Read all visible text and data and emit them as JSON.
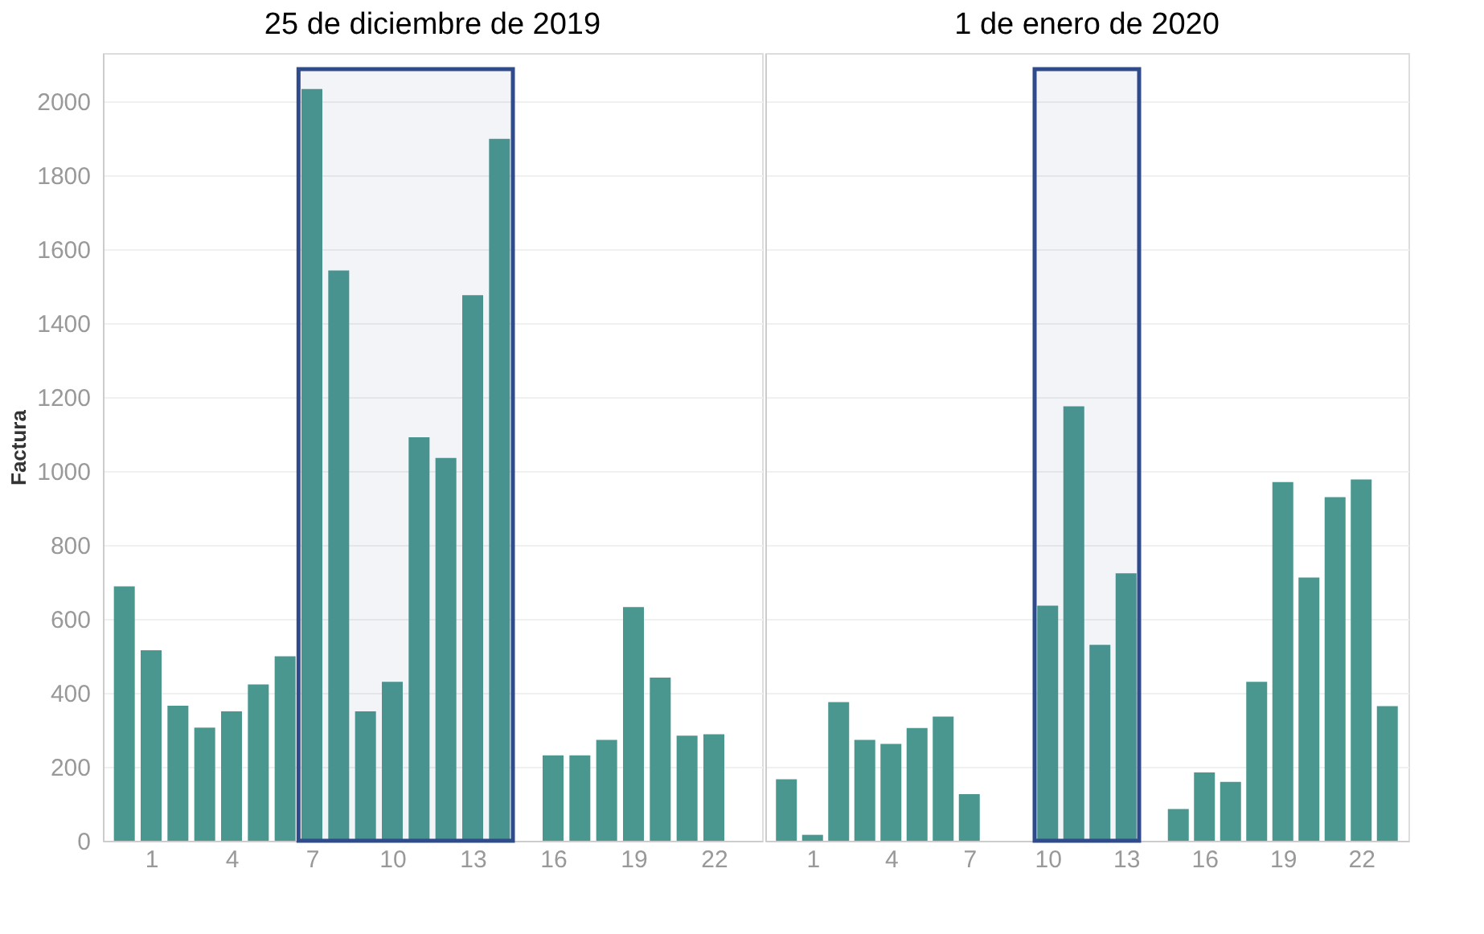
{
  "chart_data": [
    {
      "type": "bar",
      "title": "25 de diciembre de 2019",
      "ylabel": "Factura",
      "x": [
        0,
        1,
        2,
        3,
        4,
        5,
        6,
        7,
        8,
        9,
        10,
        11,
        12,
        13,
        14,
        16,
        17,
        18,
        19,
        20,
        21,
        22
      ],
      "values": [
        688,
        515,
        365,
        306,
        350,
        423,
        499,
        2033,
        1542,
        350,
        430,
        1091,
        1035,
        1475,
        1898,
        231,
        231,
        273,
        632,
        441,
        284,
        288
      ],
      "color": "#4a9790",
      "xlim": [
        -0.5,
        23.5
      ],
      "xticks": [
        1,
        4,
        7,
        10,
        13,
        16,
        19,
        22
      ],
      "ylim": [
        0,
        2130
      ],
      "yticks": [
        0,
        200,
        400,
        600,
        800,
        1000,
        1200,
        1400,
        1600,
        1800,
        2000
      ],
      "grid": "y",
      "bands": [
        {
          "axis": "x",
          "from": 6.5,
          "to": 14.5,
          "label": null,
          "color": "#2f4b8c"
        }
      ]
    },
    {
      "type": "bar",
      "title": "1 de enero de 2020",
      "x": [
        0,
        1,
        2,
        3,
        4,
        5,
        6,
        7,
        10,
        11,
        12,
        13,
        15,
        16,
        17,
        18,
        19,
        20,
        21,
        22,
        23
      ],
      "values": [
        166,
        16,
        375,
        273,
        262,
        305,
        336,
        126,
        636,
        1175,
        530,
        723,
        86,
        185,
        159,
        430,
        970,
        712,
        929,
        977,
        364
      ],
      "color": "#4a9790",
      "xlim": [
        -0.5,
        23.5
      ],
      "xticks": [
        1,
        4,
        7,
        10,
        13,
        16,
        19,
        22
      ],
      "ylim": [
        0,
        2130
      ],
      "yticks": [
        0,
        200,
        400,
        600,
        800,
        1000,
        1200,
        1400,
        1600,
        1800,
        2000
      ],
      "grid": "y",
      "tick_labels": "x",
      "bands": [
        {
          "axis": "x",
          "from": 9.5,
          "to": 13.5,
          "label": null,
          "color": "#2f4b8c"
        }
      ]
    }
  ]
}
